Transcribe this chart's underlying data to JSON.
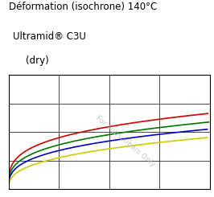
{
  "title_line1": "Déformation (isochrone) 140°C",
  "title_line2": "Ultramid® C3U",
  "title_line3": "(dry)",
  "watermark": "For Subscribers Only",
  "xlim": [
    0,
    4
  ],
  "ylim": [
    0,
    4
  ],
  "grid": true,
  "curve_params": [
    {
      "color": "#cc0000",
      "a": 1.8,
      "n": 0.28
    },
    {
      "color": "#007700",
      "a": 1.55,
      "n": 0.3
    },
    {
      "color": "#0000cc",
      "a": 1.35,
      "n": 0.32
    },
    {
      "color": "#cccc00",
      "a": 1.1,
      "n": 0.36
    }
  ],
  "background_color": "#ffffff",
  "title_fontsize": 8.5,
  "subtitle_fontsize": 8.5
}
